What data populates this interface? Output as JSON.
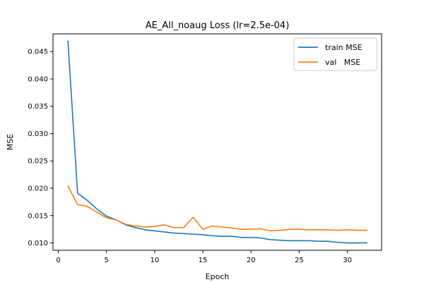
{
  "chart_data": {
    "type": "line",
    "title": "AE_All_noaug Loss (lr=2.5e-04)",
    "xlabel": "Epoch",
    "ylabel": "MSE",
    "xlim": [
      -0.55,
      33.55
    ],
    "ylim": [
      0.00865,
      0.04825
    ],
    "x_ticks": [
      0,
      5,
      10,
      15,
      20,
      25,
      30
    ],
    "x_tick_labels": [
      "0",
      "5",
      "10",
      "15",
      "20",
      "25",
      "30"
    ],
    "y_ticks": [
      0.01,
      0.015,
      0.02,
      0.025,
      0.03,
      0.035,
      0.04,
      0.045
    ],
    "y_tick_labels": [
      "0.010",
      "0.015",
      "0.020",
      "0.025",
      "0.030",
      "0.035",
      "0.040",
      "0.045"
    ],
    "grid": false,
    "legend_position": "top-right",
    "x": [
      1,
      2,
      3,
      4,
      5,
      6,
      7,
      8,
      9,
      10,
      11,
      12,
      13,
      14,
      15,
      16,
      17,
      18,
      19,
      20,
      21,
      22,
      23,
      24,
      25,
      26,
      27,
      28,
      29,
      30,
      31,
      32
    ],
    "series": [
      {
        "name": "train MSE",
        "color": "#1f77b4",
        "values": [
          0.0469,
          0.0191,
          0.0178,
          0.0162,
          0.0149,
          0.0142,
          0.0133,
          0.0128,
          0.0124,
          0.0122,
          0.012,
          0.0118,
          0.0117,
          0.0116,
          0.0115,
          0.0113,
          0.0112,
          0.0112,
          0.011,
          0.011,
          0.0109,
          0.0106,
          0.0105,
          0.0104,
          0.0104,
          0.0104,
          0.0103,
          0.0103,
          0.0101,
          0.01,
          0.01,
          0.01
        ]
      },
      {
        "name": "val   MSE",
        "color": "#ff7f0e",
        "values": [
          0.0204,
          0.017,
          0.0167,
          0.0156,
          0.0146,
          0.0142,
          0.0134,
          0.0131,
          0.0129,
          0.013,
          0.0133,
          0.0128,
          0.0128,
          0.0147,
          0.0125,
          0.0131,
          0.0129,
          0.0127,
          0.0125,
          0.0125,
          0.0126,
          0.0122,
          0.0123,
          0.0125,
          0.0125,
          0.0124,
          0.0124,
          0.0124,
          0.0123,
          0.0124,
          0.0123,
          0.0123
        ]
      }
    ]
  }
}
